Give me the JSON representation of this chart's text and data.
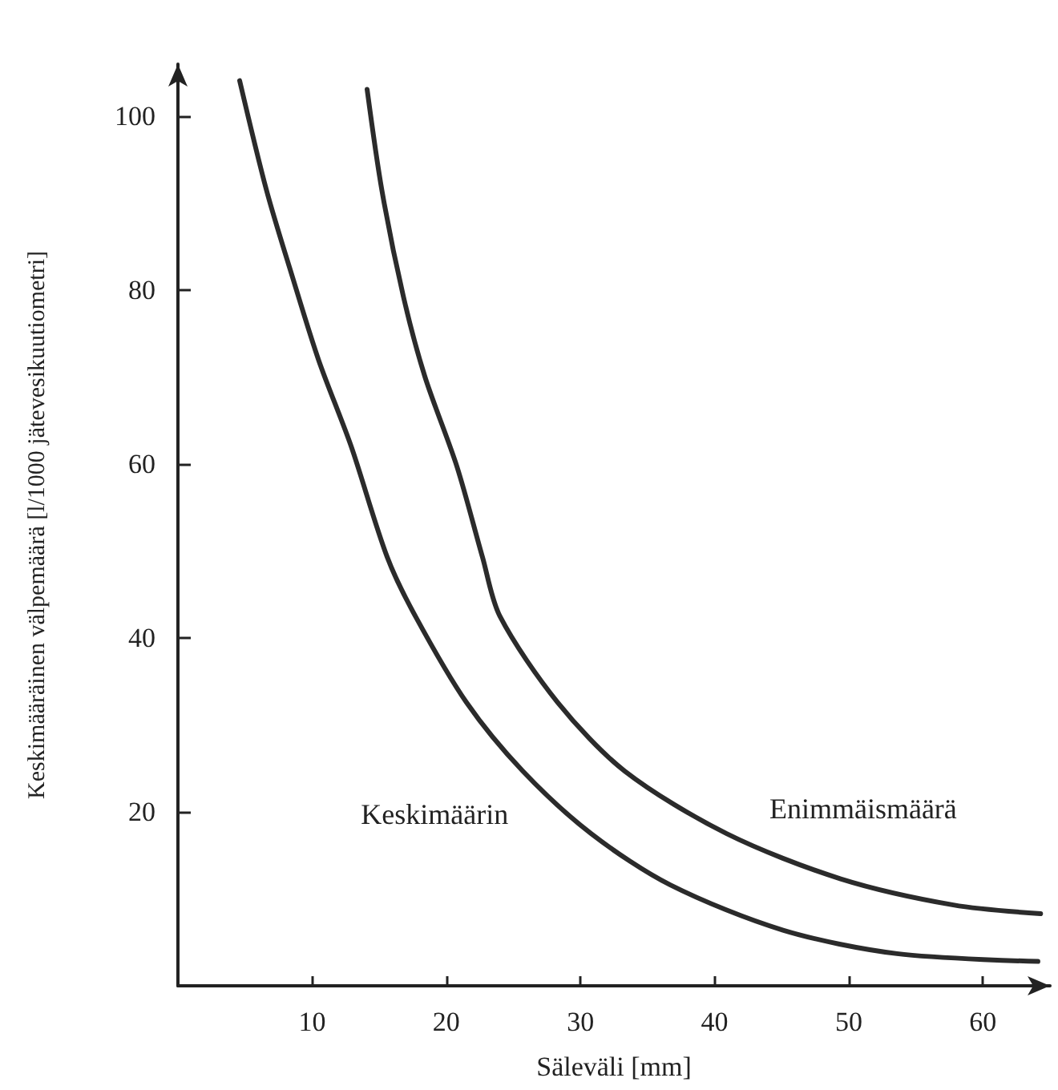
{
  "chart_data": {
    "type": "line",
    "xlabel": "Säleväli [mm]",
    "ylabel": "Keskimääräinen välpemäärä [l/1000 jätevesikuutiometri]",
    "xlim": [
      0,
      65
    ],
    "ylim": [
      0,
      106
    ],
    "xticks": [
      10,
      20,
      30,
      40,
      50,
      60
    ],
    "yticks": [
      20,
      40,
      60,
      80,
      100
    ],
    "grid": false,
    "legend": false,
    "marker": "none",
    "line_style": "solid",
    "series": [
      {
        "name": "Keskimäärin",
        "color": "#2b2b2b",
        "x": [
          4.6,
          6.6,
          8.5,
          10.5,
          12.9,
          15.6,
          17.7,
          21.5,
          25.7,
          30.8,
          36.7,
          45.1,
          53.6,
          64.1
        ],
        "values": [
          104.1,
          91.5,
          81.7,
          71.9,
          62.1,
          49.3,
          42.5,
          32.6,
          24.7,
          17.5,
          11.6,
          6.4,
          3.7,
          2.8
        ]
      },
      {
        "name": "Enimmäismäärä",
        "color": "#2b2b2b",
        "x": [
          14.1,
          15.2,
          16.8,
          18.4,
          20.8,
          22.7,
          24.0,
          28.3,
          33.3,
          40.9,
          49.4,
          57.8,
          64.3
        ],
        "values": [
          103.1,
          91.5,
          79.3,
          70.1,
          59.7,
          49.3,
          42.5,
          32.6,
          24.7,
          17.5,
          12.3,
          9.3,
          8.3
        ]
      }
    ]
  }
}
